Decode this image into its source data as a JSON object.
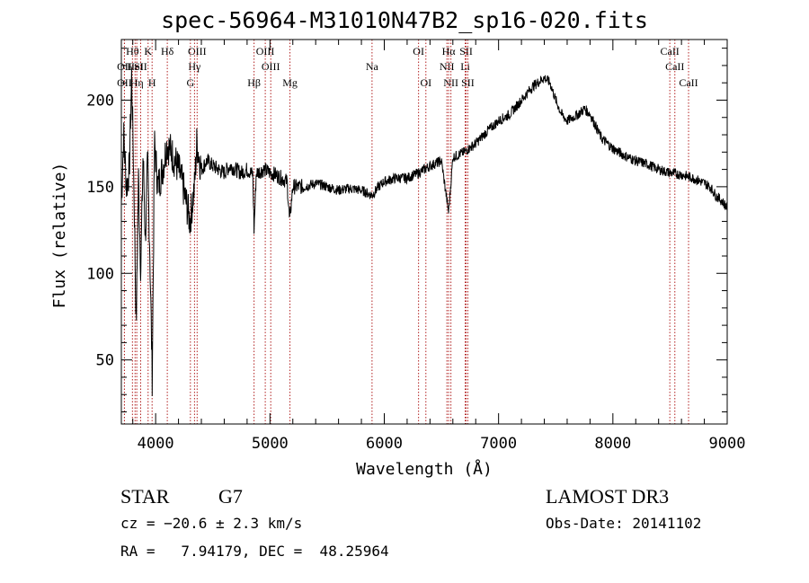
{
  "chart_data": {
    "type": "line",
    "title": "spec-56964-M31010N47B2_sp16-020.fits",
    "xlabel": "Wavelength (Å)",
    "ylabel": "Flux (relative)",
    "xlim": [
      3700,
      9000
    ],
    "ylim": [
      13,
      235
    ],
    "x_ticks": [
      4000,
      5000,
      6000,
      7000,
      8000,
      9000
    ],
    "y_ticks": [
      50,
      100,
      150,
      200
    ],
    "line_color": "#000000",
    "marker_color": "#b22222",
    "spectrum_anchors": [
      [
        3700,
        140
      ],
      [
        3720,
        180
      ],
      [
        3745,
        150
      ],
      [
        3770,
        160
      ],
      [
        3790,
        215
      ],
      [
        3810,
        150
      ],
      [
        3830,
        70
      ],
      [
        3850,
        155
      ],
      [
        3870,
        100
      ],
      [
        3890,
        170
      ],
      [
        3910,
        120
      ],
      [
        3930,
        165
      ],
      [
        3950,
        110
      ],
      [
        3970,
        40
      ],
      [
        3990,
        175
      ],
      [
        4020,
        150
      ],
      [
        4060,
        160
      ],
      [
        4100,
        175
      ],
      [
        4150,
        168
      ],
      [
        4200,
        160
      ],
      [
        4240,
        150
      ],
      [
        4270,
        140
      ],
      [
        4300,
        130
      ],
      [
        4320,
        140
      ],
      [
        4340,
        150
      ],
      [
        4360,
        175
      ],
      [
        4400,
        160
      ],
      [
        4450,
        165
      ],
      [
        4500,
        162
      ],
      [
        4550,
        160
      ],
      [
        4600,
        158
      ],
      [
        4650,
        162
      ],
      [
        4700,
        160
      ],
      [
        4750,
        158
      ],
      [
        4800,
        160
      ],
      [
        4850,
        157
      ],
      [
        4861,
        125
      ],
      [
        4880,
        158
      ],
      [
        4950,
        160
      ],
      [
        5000,
        158
      ],
      [
        5050,
        157
      ],
      [
        5100,
        155
      ],
      [
        5150,
        153
      ],
      [
        5172,
        130
      ],
      [
        5200,
        150
      ],
      [
        5300,
        150
      ],
      [
        5400,
        152
      ],
      [
        5500,
        150
      ],
      [
        5600,
        148
      ],
      [
        5700,
        149
      ],
      [
        5800,
        148
      ],
      [
        5893,
        145
      ],
      [
        5950,
        150
      ],
      [
        6000,
        153
      ],
      [
        6100,
        155
      ],
      [
        6200,
        155
      ],
      [
        6300,
        158
      ],
      [
        6400,
        162
      ],
      [
        6500,
        165
      ],
      [
        6563,
        135
      ],
      [
        6600,
        167
      ],
      [
        6700,
        170
      ],
      [
        6800,
        175
      ],
      [
        6900,
        182
      ],
      [
        7000,
        188
      ],
      [
        7100,
        192
      ],
      [
        7200,
        200
      ],
      [
        7300,
        208
      ],
      [
        7400,
        213
      ],
      [
        7450,
        210
      ],
      [
        7500,
        200
      ],
      [
        7550,
        192
      ],
      [
        7600,
        188
      ],
      [
        7650,
        190
      ],
      [
        7700,
        192
      ],
      [
        7750,
        195
      ],
      [
        7800,
        192
      ],
      [
        7850,
        185
      ],
      [
        7900,
        178
      ],
      [
        8000,
        172
      ],
      [
        8100,
        168
      ],
      [
        8200,
        165
      ],
      [
        8300,
        163
      ],
      [
        8400,
        160
      ],
      [
        8500,
        158
      ],
      [
        8600,
        157
      ],
      [
        8700,
        155
      ],
      [
        8800,
        152
      ],
      [
        8850,
        150
      ],
      [
        8900,
        145
      ],
      [
        8950,
        142
      ],
      [
        9000,
        138
      ]
    ],
    "line_markers": [
      {
        "label": "OII",
        "wavelength": 3727,
        "row": 2
      },
      {
        "label": "OII",
        "wavelength": 3727,
        "row": 3
      },
      {
        "label": "Hθ",
        "wavelength": 3797,
        "row": 1
      },
      {
        "label": "HeI",
        "wavelength": 3820,
        "row": 2
      },
      {
        "label": "Hη",
        "wavelength": 3835,
        "row": 3
      },
      {
        "label": "SII",
        "wavelength": 3869,
        "row": 2
      },
      {
        "label": "K",
        "wavelength": 3934,
        "row": 1
      },
      {
        "label": "H",
        "wavelength": 3969,
        "row": 3
      },
      {
        "label": "Hδ",
        "wavelength": 4102,
        "row": 1
      },
      {
        "label": "OIII",
        "wavelength": 4363,
        "row": 1
      },
      {
        "label": "Hγ",
        "wavelength": 4340,
        "row": 2
      },
      {
        "label": "G",
        "wavelength": 4304,
        "row": 3
      },
      {
        "label": "Hβ",
        "wavelength": 4861,
        "row": 3
      },
      {
        "label": "OIII",
        "wavelength": 4959,
        "row": 1
      },
      {
        "label": "OIII",
        "wavelength": 5007,
        "row": 2
      },
      {
        "label": "Mg",
        "wavelength": 5175,
        "row": 3
      },
      {
        "label": "Na",
        "wavelength": 5893,
        "row": 2
      },
      {
        "label": "OI",
        "wavelength": 6300,
        "row": 1
      },
      {
        "label": "OI",
        "wavelength": 6364,
        "row": 3
      },
      {
        "label": "NII",
        "wavelength": 6548,
        "row": 2
      },
      {
        "label": "NII",
        "wavelength": 6583,
        "row": 3
      },
      {
        "label": "Hα",
        "wavelength": 6563,
        "row": 1
      },
      {
        "label": "SII",
        "wavelength": 6716,
        "row": 1
      },
      {
        "label": "Li",
        "wavelength": 6708,
        "row": 2
      },
      {
        "label": "SII",
        "wavelength": 6731,
        "row": 3
      },
      {
        "label": "CaII",
        "wavelength": 8498,
        "row": 1
      },
      {
        "label": "CaII",
        "wavelength": 8542,
        "row": 2
      },
      {
        "label": "CaII",
        "wavelength": 8662,
        "row": 3
      }
    ]
  },
  "info": {
    "class": "STAR",
    "subclass": "G7",
    "survey": "LAMOST DR3",
    "cz": "cz = −20.6 ± 2.3 km/s",
    "obs_date": "Obs-Date: 20141102",
    "radec": "RA =   7.94179, DEC =  48.25964"
  }
}
